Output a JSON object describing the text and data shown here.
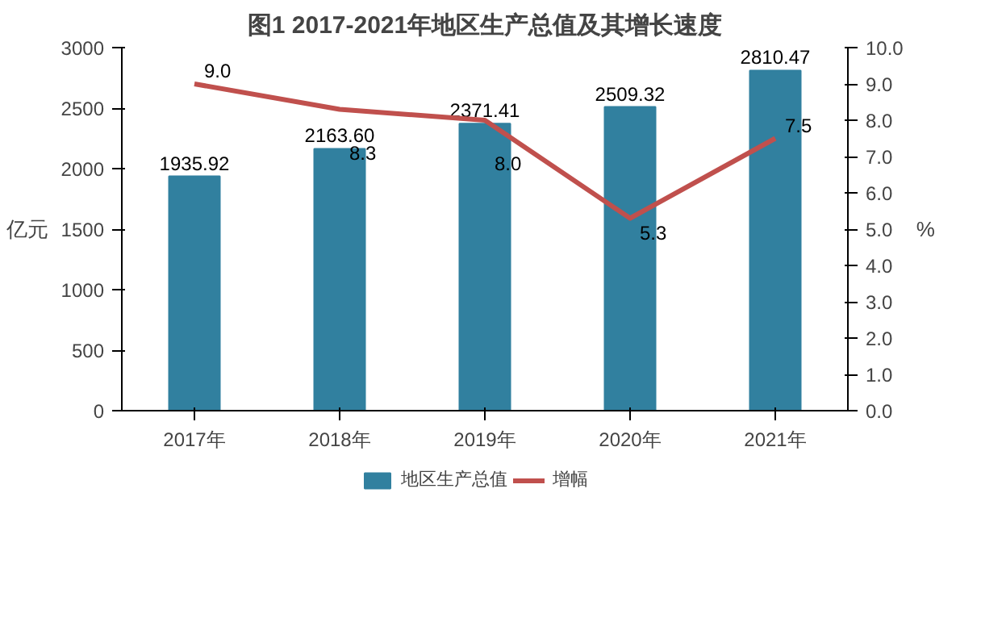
{
  "chart_data": {
    "type": "bar",
    "title": "图1 2017-2021年地区生产总值及其增长速度",
    "categories": [
      "2017年",
      "2018年",
      "2019年",
      "2020年",
      "2021年"
    ],
    "ylabel": "亿元",
    "y2label": "%",
    "ylim": [
      0,
      3000
    ],
    "yticks": [
      0,
      500,
      1000,
      1500,
      2000,
      2500,
      3000
    ],
    "y2lim": [
      0,
      10
    ],
    "y2ticks": [
      {
        "value": 0,
        "label": "0.0"
      },
      {
        "value": 1,
        "label": "1.0"
      },
      {
        "value": 2,
        "label": "2.0"
      },
      {
        "value": 3,
        "label": "3.0"
      },
      {
        "value": 4,
        "label": "4.0"
      },
      {
        "value": 5,
        "label": "5.0"
      },
      {
        "value": 6,
        "label": "6.0"
      },
      {
        "value": 7,
        "label": "7.0"
      },
      {
        "value": 8,
        "label": "8.0"
      },
      {
        "value": 9,
        "label": "9.0"
      },
      {
        "value": 10,
        "label": "10.0"
      }
    ],
    "legend": "bottom",
    "series": [
      {
        "name": "地区生产总值",
        "color": "#31809f",
        "values": [
          1935.92,
          2163.6,
          2371.41,
          2509.32,
          2810.47
        ],
        "value_labels": [
          "1935.92",
          "2163.60",
          "2371.41",
          "2509.32",
          "2810.47"
        ]
      },
      {
        "name": "增幅",
        "type": "line",
        "axis": "y2",
        "color": "#c0504d",
        "values": [
          9.0,
          8.3,
          8.0,
          5.3,
          7.5
        ],
        "value_labels": [
          "9.0",
          "8.3",
          "8.0",
          "5.3",
          "7.5"
        ]
      }
    ]
  }
}
